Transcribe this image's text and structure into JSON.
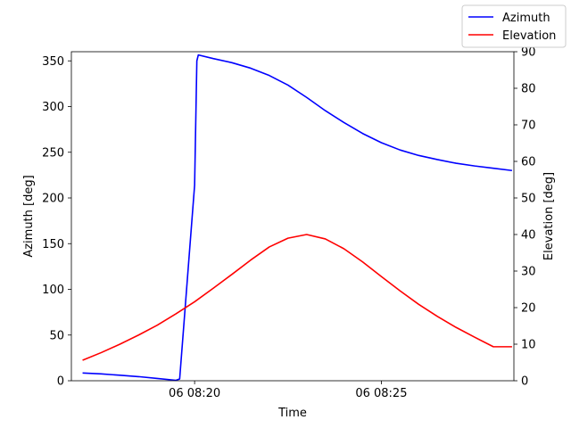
{
  "chart_data": {
    "type": "line",
    "xlabel": "Time",
    "ylabel_left": "Azimuth [deg]",
    "ylabel_right": "Elevation [deg]",
    "x_unit": "minutes after 06 08:00",
    "xlim": [
      16.7,
      28.55
    ],
    "x_ticks": [
      {
        "value": 20,
        "label": "06 08:20"
      },
      {
        "value": 25,
        "label": "06 08:25"
      }
    ],
    "y_left": {
      "lim": [
        0,
        360
      ],
      "ticks": [
        0,
        50,
        100,
        150,
        200,
        250,
        300,
        350
      ]
    },
    "y_right": {
      "lim": [
        0,
        90
      ],
      "ticks": [
        0,
        10,
        20,
        30,
        40,
        50,
        60,
        70,
        80,
        90
      ]
    },
    "grid": false,
    "legend_placement": "top-right (outside axes)",
    "series": [
      {
        "name": "Azimuth",
        "axis": "left",
        "color": "#0000ff",
        "points": [
          [
            17.0,
            8.5
          ],
          [
            17.5,
            7.5
          ],
          [
            18.0,
            6.0
          ],
          [
            18.5,
            4.5
          ],
          [
            19.0,
            2.5
          ],
          [
            19.5,
            0.5
          ],
          [
            19.6,
            2.0
          ],
          [
            20.0,
            214.0
          ],
          [
            20.06,
            350.0
          ],
          [
            20.1,
            356.5
          ],
          [
            20.5,
            352.5
          ],
          [
            21.0,
            348.0
          ],
          [
            21.5,
            342.0
          ],
          [
            22.0,
            334.0
          ],
          [
            22.5,
            323.5
          ],
          [
            23.0,
            310.0
          ],
          [
            23.5,
            295.5
          ],
          [
            24.0,
            282.5
          ],
          [
            24.5,
            270.5
          ],
          [
            25.0,
            260.5
          ],
          [
            25.5,
            252.5
          ],
          [
            26.0,
            246.5
          ],
          [
            26.5,
            242.0
          ],
          [
            27.0,
            238.0
          ],
          [
            27.5,
            235.0
          ],
          [
            28.0,
            232.5
          ],
          [
            28.5,
            230.0
          ]
        ]
      },
      {
        "name": "Elevation",
        "axis": "right",
        "color": "#ff0000",
        "points": [
          [
            17.0,
            5.6
          ],
          [
            17.5,
            7.7
          ],
          [
            18.0,
            10.0
          ],
          [
            18.5,
            12.5
          ],
          [
            19.0,
            15.2
          ],
          [
            19.5,
            18.3
          ],
          [
            20.0,
            21.6
          ],
          [
            20.5,
            25.3
          ],
          [
            21.0,
            29.1
          ],
          [
            21.5,
            33.0
          ],
          [
            22.0,
            36.6
          ],
          [
            22.5,
            39.0
          ],
          [
            23.0,
            40.0
          ],
          [
            23.5,
            38.8
          ],
          [
            24.0,
            36.1
          ],
          [
            24.5,
            32.5
          ],
          [
            25.0,
            28.5
          ],
          [
            25.5,
            24.6
          ],
          [
            26.0,
            20.9
          ],
          [
            26.5,
            17.6
          ],
          [
            27.0,
            14.6
          ],
          [
            27.5,
            11.9
          ],
          [
            28.0,
            9.3
          ],
          [
            28.5,
            9.3
          ]
        ]
      }
    ]
  }
}
